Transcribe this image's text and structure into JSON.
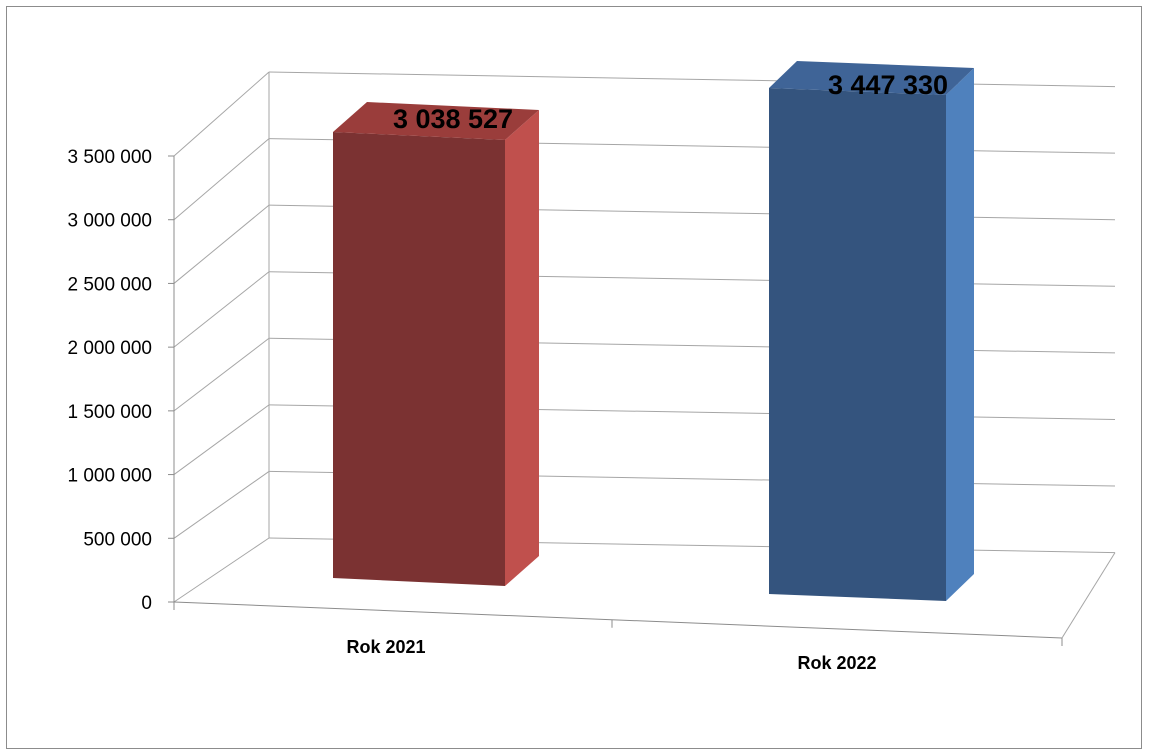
{
  "chart_data": {
    "type": "bar",
    "categories": [
      "Rok 2021",
      "Rok 2022"
    ],
    "values": [
      3038527,
      3447330
    ],
    "data_labels": [
      "3 038 527",
      "3 447 330"
    ],
    "y_ticks": [
      "0",
      "500 000",
      "1 000 000",
      "1 500 000",
      "2 000 000",
      "2 500 000",
      "3 000 000",
      "3 500 000"
    ],
    "ylim": [
      0,
      3500000
    ],
    "title": "",
    "xlabel": "",
    "ylabel": "",
    "grid": true,
    "legend": "none",
    "style": "3d-column",
    "colors": {
      "bar_0": {
        "front": "#7b3232",
        "side": "#c0504d",
        "top": "#9a3d3b"
      },
      "bar_1": {
        "front": "#34547e",
        "side": "#4f81bd",
        "top": "#3f6497"
      },
      "grid": "#a6a6a6",
      "axis": "#8c8c8c"
    }
  }
}
